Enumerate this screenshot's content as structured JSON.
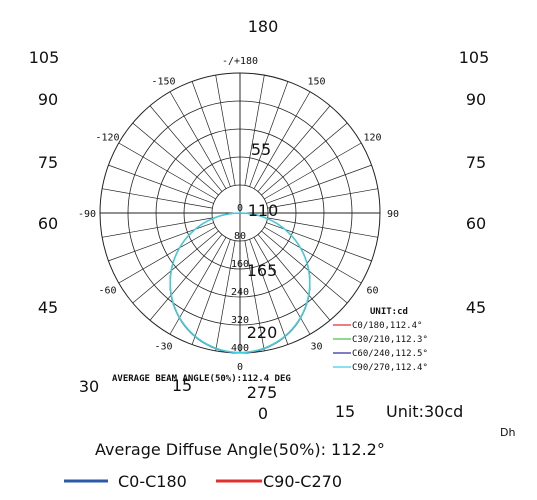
{
  "chart_data": {
    "type": "polar",
    "title": "",
    "outer_angle_labels": [
      {
        "text": "-/+180",
        "angle": 180
      },
      {
        "text": "150",
        "angle": 150
      },
      {
        "text": "-150",
        "angle": -150
      },
      {
        "text": "120",
        "angle": 120
      },
      {
        "text": "-120",
        "angle": -120
      },
      {
        "text": "90",
        "angle": 90
      },
      {
        "text": "-90",
        "angle": -90
      },
      {
        "text": "60",
        "angle": 60
      },
      {
        "text": "-60",
        "angle": -60
      },
      {
        "text": "30",
        "angle": 30
      },
      {
        "text": "-30",
        "angle": -30
      },
      {
        "text": "0",
        "angle": 0
      }
    ],
    "radial_labels": [
      "80",
      "160",
      "240",
      "320",
      "400"
    ],
    "radial_max": 400,
    "series": [
      {
        "name": "C0/180,112.4°",
        "color": "#e03030",
        "peak": 400,
        "beam_angle": 112.4
      },
      {
        "name": "C30/210,112.3°",
        "color": "#50c050",
        "peak": 398,
        "beam_angle": 112.3
      },
      {
        "name": "C60/240,112.5°",
        "color": "#3030a0",
        "peak": 400,
        "beam_angle": 112.5
      },
      {
        "name": "C90/270,112.4°",
        "color": "#40d0e0",
        "peak": 399,
        "beam_angle": 112.4
      }
    ],
    "legend_unit": "UNIT:cd",
    "average_beam_angle_text": "AVERAGE BEAM ANGLE(50%):112.4 DEG"
  },
  "overlay_chart": {
    "top_label": "180",
    "left_labels": [
      "105",
      "90",
      "75",
      "60",
      "45",
      "30"
    ],
    "right_labels": [
      "105",
      "90",
      "75",
      "60",
      "45"
    ],
    "inner_labels": [
      "55",
      "110",
      "165",
      "220",
      "275"
    ],
    "bottom_labels": [
      "15",
      "0",
      "15"
    ],
    "unit_label": "Unit:30cd",
    "dh_label": "Dh",
    "diffuse_angle_text": "Average Diffuse Angle(50%): 112.2°",
    "legend": [
      {
        "name": "C0-C180",
        "color": "#2a5aa8"
      },
      {
        "name": "C90-C270",
        "color": "#e03030"
      }
    ]
  }
}
